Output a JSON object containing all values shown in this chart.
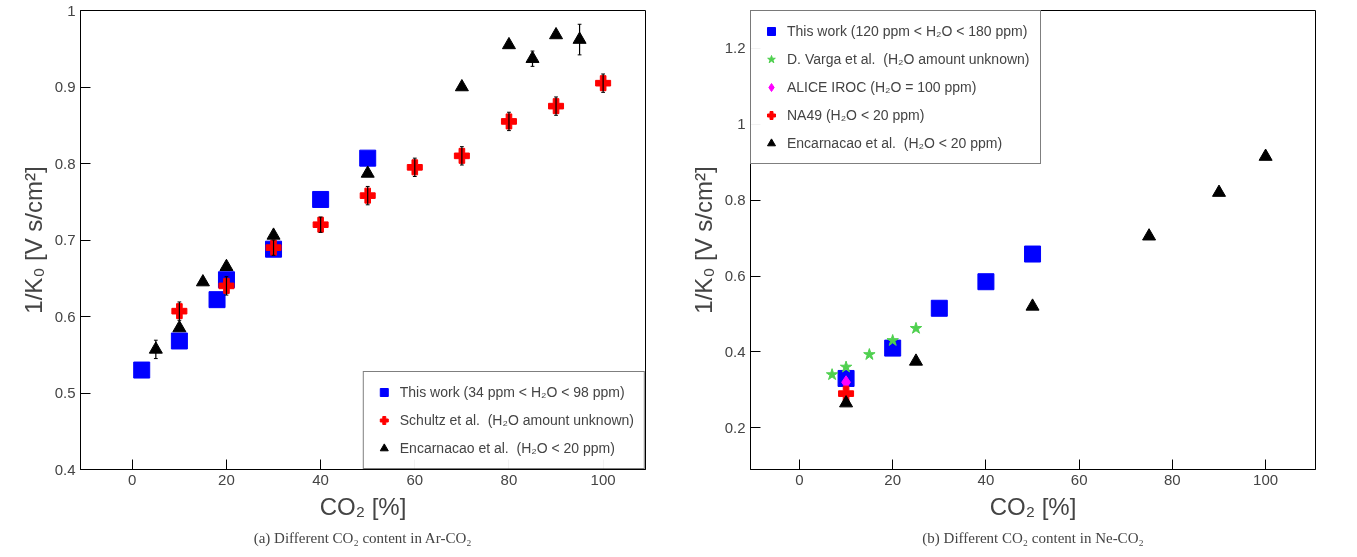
{
  "chart_data": [
    {
      "type": "scatter",
      "xlabel": "CO₂ [%]",
      "ylabel": "1/K₀ [V s/cm²]",
      "annotations": [
        "(a) Different CO₂ content in Ar-CO₂"
      ],
      "xlim": [
        -11,
        109
      ],
      "ylim": [
        0.4,
        1
      ],
      "xticks": [
        0,
        20,
        40,
        60,
        80,
        100
      ],
      "yticks": [
        0.4,
        0.5,
        0.6,
        0.7,
        0.8,
        0.9,
        1
      ],
      "grid": false,
      "legend": "bottom right",
      "series": [
        {
          "name": "This work (34 ppm < H₂O < 98 ppm)",
          "color": "#0000ff",
          "marker": "square",
          "x": [
            2,
            10,
            18,
            20,
            30,
            40,
            50
          ],
          "values": [
            0.53,
            0.568,
            0.622,
            0.648,
            0.688,
            0.753,
            0.807
          ]
        },
        {
          "name": "Schultz et al.  (H₂O amount unknown)",
          "color": "#ff0000",
          "marker": "cross",
          "x": [
            10,
            20,
            30,
            40,
            50,
            60,
            70,
            80,
            90,
            100
          ],
          "values": [
            0.607,
            0.64,
            0.69,
            0.72,
            0.758,
            0.795,
            0.81,
            0.855,
            0.875,
            0.905
          ],
          "errors": [
            0.012,
            0.012,
            0.01,
            0.01,
            0.012,
            0.012,
            0.012,
            0.012,
            0.012,
            0.012
          ]
        },
        {
          "name": "Encarnacao et al.  (H₂O < 20 ppm)",
          "color": "#000000",
          "marker": "triangle",
          "x": [
            5,
            10,
            15,
            20,
            30,
            50,
            70,
            80,
            85,
            90,
            95
          ],
          "values": [
            0.557,
            0.585,
            0.645,
            0.665,
            0.706,
            0.787,
            0.9,
            0.955,
            0.937,
            0.968,
            0.962
          ],
          "errors": [
            0.012,
            null,
            null,
            null,
            null,
            null,
            null,
            null,
            0.01,
            null,
            0.02
          ]
        }
      ]
    },
    {
      "type": "scatter",
      "xlabel": "CO₂ [%]",
      "ylabel": "1/K₀ [V s/cm²]",
      "annotations": [
        "(b) Different CO₂ content in Ne-CO₂"
      ],
      "xlim": [
        -10.5,
        110.7
      ],
      "ylim": [
        0.09,
        1.3
      ],
      "xticks": [
        0,
        20,
        40,
        60,
        80,
        100
      ],
      "yticks": [
        0.2,
        0.4,
        0.6,
        0.8,
        1,
        1.2
      ],
      "grid": false,
      "legend": "top left",
      "series": [
        {
          "name": "This work (120 ppm < H₂O < 180 ppm)",
          "color": "#0000ff",
          "marker": "square",
          "x": [
            10,
            20,
            30,
            40,
            50
          ],
          "values": [
            0.33,
            0.41,
            0.515,
            0.585,
            0.658
          ]
        },
        {
          "name": "D. Varga et al.  (H₂O amount unknown)",
          "color": "#4fd04f",
          "marker": "star",
          "x": [
            7,
            10,
            15,
            20,
            25
          ],
          "values": [
            0.34,
            0.36,
            0.393,
            0.43,
            0.462
          ]
        },
        {
          "name": "ALICE IROC (H₂O = 100 ppm)",
          "color": "#ff00ff",
          "marker": "diamond",
          "x": [
            10
          ],
          "values": [
            0.32
          ]
        },
        {
          "name": "NA49 (H₂O < 20 ppm)",
          "color": "#ff0000",
          "marker": "cross",
          "x": [
            10
          ],
          "values": [
            0.29
          ]
        },
        {
          "name": "Encarnacao et al.  (H₂O < 20 ppm)",
          "color": "#000000",
          "marker": "triangle",
          "x": [
            10,
            25,
            50,
            75,
            90,
            100
          ],
          "values": [
            0.265,
            0.375,
            0.52,
            0.705,
            0.82,
            0.915
          ]
        }
      ]
    }
  ]
}
